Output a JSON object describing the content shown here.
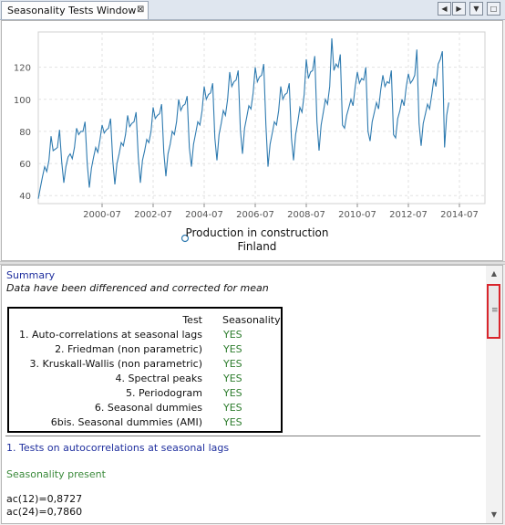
{
  "window": {
    "tab_title": "Seasonality Tests Window",
    "tab_close_glyph": "⊠",
    "nav_prev_glyph": "◀",
    "nav_next_glyph": "▶",
    "menu_glyph": "▼",
    "maximize_glyph": "□"
  },
  "chart_data": {
    "type": "line",
    "title": "",
    "xlabel": "",
    "ylabel": "",
    "legend": {
      "entries": [
        "Production in construction Finland"
      ],
      "line1": "Production in construction",
      "line2": "Finland",
      "placement": "bottom-center"
    },
    "ylim": [
      35,
      142
    ],
    "y_ticks": [
      40,
      60,
      80,
      100,
      120
    ],
    "xlim": [
      1998.0,
      2015.5
    ],
    "x_tick_labels": [
      "2000-07",
      "2002-07",
      "2004-07",
      "2006-07",
      "2008-07",
      "2010-07",
      "2012-07",
      "2014-07"
    ],
    "grid": true,
    "series_color": "#2f7bb0",
    "series": [
      {
        "name": "Production in construction Finland",
        "start": "1998-01",
        "frequency": "monthly",
        "values": [
          38,
          45,
          52,
          58,
          55,
          62,
          77,
          68,
          69,
          70,
          81,
          61,
          48,
          58,
          64,
          66,
          63,
          70,
          82,
          78,
          80,
          80,
          86,
          60,
          45,
          57,
          64,
          70,
          67,
          75,
          84,
          79,
          81,
          82,
          88,
          62,
          47,
          60,
          66,
          73,
          71,
          78,
          90,
          83,
          85,
          86,
          92,
          64,
          48,
          62,
          68,
          75,
          73,
          80,
          95,
          88,
          90,
          91,
          97,
          67,
          52,
          66,
          72,
          80,
          78,
          86,
          100,
          93,
          96,
          97,
          102,
          70,
          58,
          72,
          79,
          86,
          84,
          93,
          108,
          100,
          103,
          104,
          110,
          76,
          62,
          78,
          85,
          93,
          90,
          100,
          117,
          108,
          111,
          112,
          118,
          81,
          66,
          82,
          89,
          96,
          94,
          104,
          120,
          111,
          114,
          115,
          122,
          84,
          58,
          72,
          79,
          86,
          84,
          93,
          108,
          100,
          103,
          104,
          110,
          76,
          62,
          78,
          86,
          95,
          92,
          103,
          125,
          113,
          117,
          118,
          127,
          86,
          68,
          84,
          92,
          100,
          97,
          108,
          138,
          118,
          122,
          120,
          128,
          84,
          82,
          90,
          95,
          100,
          96,
          108,
          117,
          110,
          113,
          112,
          120,
          80,
          74,
          86,
          92,
          98,
          94,
          106,
          115,
          108,
          111,
          110,
          118,
          78,
          76,
          88,
          93,
          100,
          96,
          108,
          116,
          110,
          112,
          115,
          131,
          85,
          71,
          85,
          91,
          97,
          94,
          103,
          113,
          108,
          122,
          125,
          130,
          70,
          90,
          98
        ]
      }
    ]
  },
  "summary": {
    "title": "Summary",
    "note": "Data have been differenced and corrected for mean",
    "table_headers": [
      "Test",
      "Seasonality"
    ],
    "rows": [
      {
        "test": "1. Auto-correlations at seasonal lags",
        "result": "YES"
      },
      {
        "test": "2. Friedman (non parametric)",
        "result": "YES"
      },
      {
        "test": "3. Kruskall-Wallis (non parametric)",
        "result": "YES"
      },
      {
        "test": "4. Spectral peaks",
        "result": "YES"
      },
      {
        "test": "5. Periodogram",
        "result": "YES"
      },
      {
        "test": "6. Seasonal dummies",
        "result": "YES"
      },
      {
        "test": "6bis. Seasonal dummies (AMI)",
        "result": "YES"
      }
    ],
    "result_color": "#2e7d2e"
  },
  "section1": {
    "title": "1. Tests on autocorrelations at seasonal lags",
    "status": "Seasonality present",
    "status_color": "#3c8b3c",
    "lines": [
      "ac(12)=0,8727",
      "ac(24)=0,7860"
    ]
  },
  "scrollbar": {
    "up_glyph": "▲",
    "down_glyph": "▼",
    "grip_glyph": "≡"
  }
}
